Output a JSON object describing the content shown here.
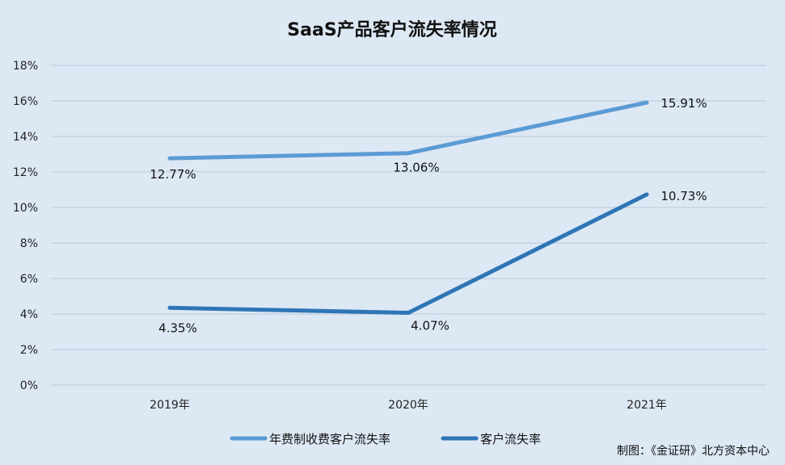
{
  "chart_data": {
    "type": "line",
    "title": "SaaS产品客户流失率情况",
    "categories": [
      "2019年",
      "2020年",
      "2021年"
    ],
    "y_ticks": [
      "0%",
      "2%",
      "4%",
      "6%",
      "8%",
      "10%",
      "12%",
      "14%",
      "16%",
      "18%"
    ],
    "ylim": [
      0,
      18
    ],
    "grid": true,
    "legend_position": "bottom",
    "series": [
      {
        "name": "年费制收费客户流失率",
        "values": [
          12.77,
          13.06,
          15.91
        ],
        "labels": [
          "12.77%",
          "13.06%",
          "15.91%"
        ],
        "color": "#5b9bd5"
      },
      {
        "name": "客户流失率",
        "values": [
          4.35,
          4.07,
          10.73
        ],
        "labels": [
          "4.35%",
          "4.07%",
          "10.73%"
        ],
        "color": "#2e75b6"
      }
    ],
    "source": "制图：《金证研》北方资本中心"
  },
  "colors": {
    "background": "#dde8f5",
    "gridline": "#b9c7d8"
  }
}
